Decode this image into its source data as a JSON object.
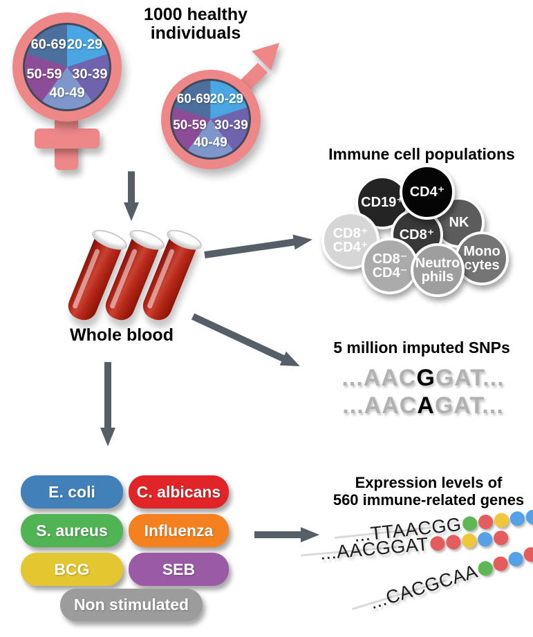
{
  "header": {
    "title_line1": "1000 healthy",
    "title_line2": "individuals"
  },
  "demographics": {
    "age_groups": [
      "20-29",
      "30-39",
      "40-49",
      "50-59",
      "60-69"
    ],
    "pie_slice_colors": [
      "#4aa5e3",
      "#7063ae",
      "#7f96cb",
      "#8d4c97",
      "#4d6f9d"
    ],
    "symbol_color": "#ee8788",
    "pie_border_color": "#404a5a"
  },
  "whole_blood": {
    "label": "Whole blood"
  },
  "arrows": {
    "color": "#565e68"
  },
  "immune": {
    "title": "Immune cell populations",
    "cells": [
      {
        "name": "cd19-pos",
        "lines": [
          "CD19⁺"
        ],
        "color": "#242424"
      },
      {
        "name": "nk",
        "lines": [
          "NK"
        ],
        "color": "#5c5c5c"
      },
      {
        "name": "cd8-pos",
        "lines": [
          "CD8⁺"
        ],
        "color": "#383838"
      },
      {
        "name": "cd4-pos",
        "lines": [
          "CD4⁺"
        ],
        "color": "#050505"
      },
      {
        "name": "cd8-pos-cd4-pos",
        "lines": [
          "CD8⁺",
          "CD4⁺"
        ],
        "color": "#d6d6d6"
      },
      {
        "name": "monocytes",
        "lines": [
          "Mono",
          "cytes"
        ],
        "color": "#757575"
      },
      {
        "name": "cd8-neg-cd4-neg",
        "lines": [
          "CD8⁻",
          "CD4⁻"
        ],
        "color": "#ababab"
      },
      {
        "name": "neutrophils",
        "lines": [
          "Neutro",
          "phils"
        ],
        "color": "#9e9e9e"
      }
    ]
  },
  "snps": {
    "title": "5 million imputed SNPs",
    "sequences": [
      {
        "pre": "...AAC",
        "variant": "G",
        "post": "GAT..."
      },
      {
        "pre": "...AAC",
        "variant": "A",
        "post": "GAT..."
      }
    ]
  },
  "stimuli": {
    "items": [
      {
        "label": "E. coli",
        "color": "#4180b8"
      },
      {
        "label": "C. albicans",
        "color": "#e12428"
      },
      {
        "label": "S. aureus",
        "color": "#50b354"
      },
      {
        "label": "Influenza",
        "color": "#f5801f"
      },
      {
        "label": "BCG",
        "color": "#e4c730"
      },
      {
        "label": "SEB",
        "color": "#9b5aa5"
      },
      {
        "label": "Non stimulated",
        "color": "#9c9c9c"
      }
    ]
  },
  "expression": {
    "title_line1": "Expression levels of",
    "title_line2": "560 immune-related genes",
    "dot_colors": {
      "green": "#5db854",
      "red": "#e45c5c",
      "yellow": "#eec73a",
      "blue": "#55a1e8"
    },
    "strands": [
      {
        "sequence": "...TTAACGG",
        "dots": [
          "green",
          "red",
          "yellow",
          "blue",
          "blue"
        ]
      },
      {
        "sequence": "...AACGGAT",
        "dots": [
          "red",
          "red",
          "yellow",
          "blue",
          "red"
        ]
      },
      {
        "sequence": "...CACGCAA",
        "dots": [
          "green",
          "red",
          "blue",
          "red",
          "red"
        ]
      }
    ]
  }
}
